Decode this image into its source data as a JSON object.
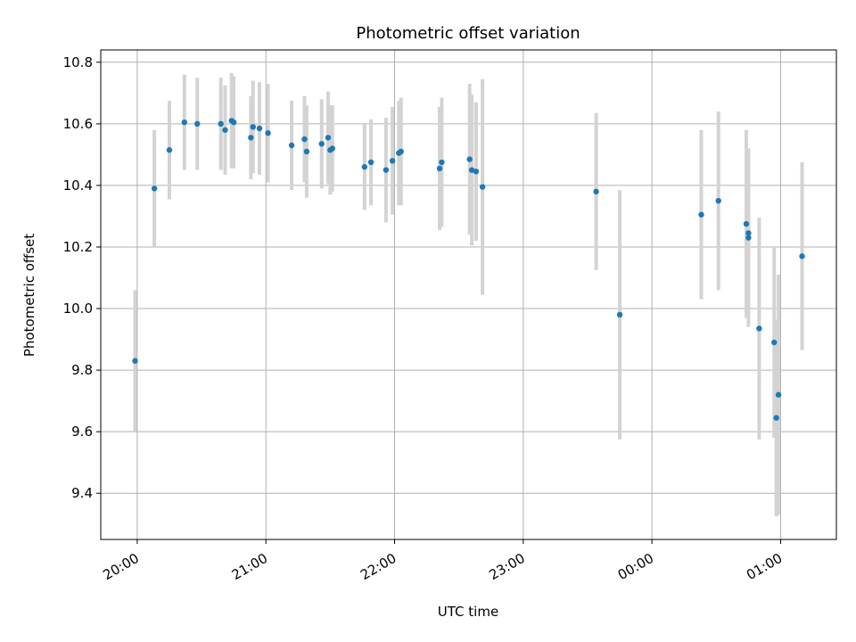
{
  "chart_data": {
    "type": "scatter",
    "title": "Photometric offset variation",
    "xlabel": "UTC time",
    "ylabel": "Photometric offset",
    "x_axis_kind": "time-of-day",
    "xlim": [
      "19:43",
      "01:26"
    ],
    "ylim": [
      9.25,
      10.84
    ],
    "x_ticks": [
      "20:00",
      "21:00",
      "22:00",
      "23:00",
      "00:00",
      "01:00"
    ],
    "y_ticks": [
      "9.4",
      "9.6",
      "9.8",
      "10.0",
      "10.2",
      "10.4",
      "10.6",
      "10.8"
    ],
    "grid": true,
    "legend": "none",
    "colors": {
      "point": "#1f77b4",
      "errorbar": "#d3d3d3",
      "grid": "#b0b0b0"
    },
    "points": [
      {
        "t": "19:59",
        "y": 9.83,
        "err": 0.23
      },
      {
        "t": "20:08",
        "y": 10.39,
        "err": 0.19
      },
      {
        "t": "20:15",
        "y": 10.515,
        "err": 0.16
      },
      {
        "t": "20:22",
        "y": 10.605,
        "err": 0.155
      },
      {
        "t": "20:28",
        "y": 10.6,
        "err": 0.15
      },
      {
        "t": "20:39",
        "y": 10.6,
        "err": 0.15
      },
      {
        "t": "20:41",
        "y": 10.58,
        "err": 0.145
      },
      {
        "t": "20:44",
        "y": 10.61,
        "err": 0.155
      },
      {
        "t": "20:45",
        "y": 10.605,
        "err": 0.15
      },
      {
        "t": "20:53",
        "y": 10.555,
        "err": 0.135
      },
      {
        "t": "20:54",
        "y": 10.59,
        "err": 0.15
      },
      {
        "t": "20:57",
        "y": 10.585,
        "err": 0.15
      },
      {
        "t": "21:01",
        "y": 10.57,
        "err": 0.16
      },
      {
        "t": "21:12",
        "y": 10.53,
        "err": 0.145
      },
      {
        "t": "21:18",
        "y": 10.55,
        "err": 0.14
      },
      {
        "t": "21:19",
        "y": 10.51,
        "err": 0.15
      },
      {
        "t": "21:26",
        "y": 10.535,
        "err": 0.145
      },
      {
        "t": "21:29",
        "y": 10.555,
        "err": 0.15
      },
      {
        "t": "21:30",
        "y": 10.515,
        "err": 0.145
      },
      {
        "t": "21:31",
        "y": 10.52,
        "err": 0.14
      },
      {
        "t": "21:46",
        "y": 10.46,
        "err": 0.14
      },
      {
        "t": "21:49",
        "y": 10.475,
        "err": 0.14
      },
      {
        "t": "21:56",
        "y": 10.45,
        "err": 0.17
      },
      {
        "t": "21:59",
        "y": 10.48,
        "err": 0.175
      },
      {
        "t": "22:02",
        "y": 10.505,
        "err": 0.17
      },
      {
        "t": "22:03",
        "y": 10.51,
        "err": 0.175
      },
      {
        "t": "22:21",
        "y": 10.455,
        "err": 0.2
      },
      {
        "t": "22:22",
        "y": 10.475,
        "err": 0.21
      },
      {
        "t": "22:35",
        "y": 10.485,
        "err": 0.245
      },
      {
        "t": "22:36",
        "y": 10.45,
        "err": 0.245
      },
      {
        "t": "22:38",
        "y": 10.445,
        "err": 0.225
      },
      {
        "t": "22:41",
        "y": 10.395,
        "err": 0.35
      },
      {
        "t": "23:34",
        "y": 10.38,
        "err": 0.255
      },
      {
        "t": "23:45",
        "y": 9.98,
        "err": 0.405
      },
      {
        "t": "00:23",
        "y": 10.305,
        "err": 0.275
      },
      {
        "t": "00:31",
        "y": 10.35,
        "err": 0.29
      },
      {
        "t": "00:44",
        "y": 10.275,
        "err": 0.305
      },
      {
        "t": "00:45",
        "y": 10.23,
        "err": 0.29
      },
      {
        "t": "00:45",
        "y": 10.245,
        "err": 0.275
      },
      {
        "t": "00:50",
        "y": 9.935,
        "err": 0.36
      },
      {
        "t": "00:57",
        "y": 9.89,
        "err": 0.31
      },
      {
        "t": "00:58",
        "y": 9.645,
        "err": 0.32
      },
      {
        "t": "00:59",
        "y": 9.72,
        "err": 0.39
      },
      {
        "t": "01:10",
        "y": 10.17,
        "err": 0.305
      }
    ]
  }
}
